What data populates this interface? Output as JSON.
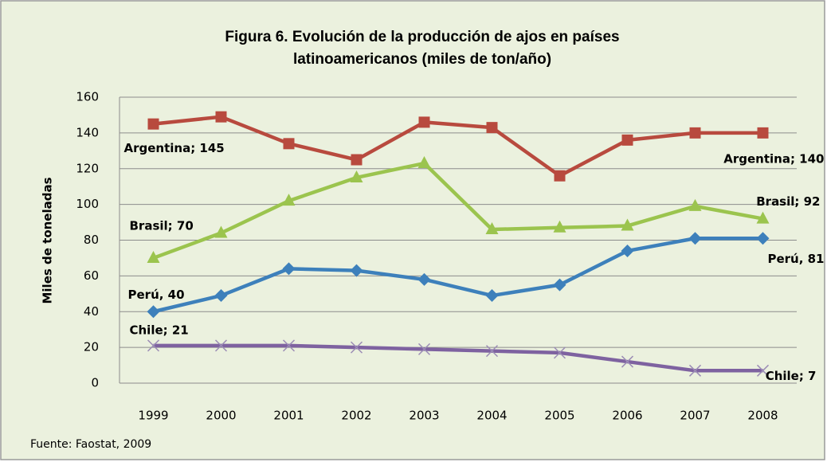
{
  "chart_data": {
    "type": "line",
    "title": [
      "Figura 6. Evolución de la producción de ajos en países",
      "latinoamericanos (miles de ton/año)"
    ],
    "y_label": "Miles de toneladas",
    "source": "Fuente: Faostat, 2009",
    "categories": [
      "1999",
      "2000",
      "2001",
      "2002",
      "2003",
      "2004",
      "2005",
      "2006",
      "2007",
      "2008"
    ],
    "ylim": [
      0,
      160
    ],
    "yticks": [
      0,
      20,
      40,
      60,
      80,
      100,
      120,
      140,
      160
    ],
    "grid": true,
    "series": [
      {
        "name": "Argentina",
        "color": "#b84a3e",
        "marker": "square",
        "values": [
          145,
          149,
          134,
          125,
          146,
          143,
          116,
          136,
          140,
          140
        ],
        "value_labels": [
          "Argentina; 145",
          null,
          null,
          null,
          null,
          null,
          null,
          null,
          null,
          "Argentina; 140"
        ]
      },
      {
        "name": "Brasil",
        "color": "#9bc44e",
        "marker": "triangle",
        "values": [
          70,
          84,
          102,
          115,
          123,
          86,
          87,
          88,
          99,
          92
        ],
        "value_labels": [
          "Brasil; 70",
          null,
          null,
          null,
          null,
          null,
          null,
          null,
          null,
          "Brasil; 92"
        ]
      },
      {
        "name": "Perú",
        "color": "#3d80bb",
        "marker": "diamond",
        "values": [
          40,
          49,
          64,
          63,
          58,
          49,
          55,
          74,
          81,
          81
        ],
        "value_labels": [
          "Perú, 40",
          null,
          null,
          null,
          null,
          null,
          null,
          null,
          null,
          "Perú, 81"
        ]
      },
      {
        "name": "Chile",
        "color": "#7e62a0",
        "marker": "x",
        "values": [
          21,
          21,
          21,
          20,
          19,
          18,
          17,
          12,
          7,
          7
        ],
        "value_labels": [
          "Chile; 21",
          null,
          null,
          null,
          null,
          null,
          null,
          null,
          null,
          "Chile; 7"
        ]
      }
    ]
  }
}
